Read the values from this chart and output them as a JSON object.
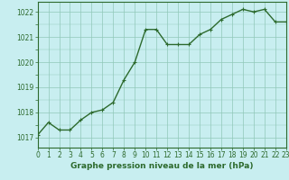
{
  "x": [
    0,
    1,
    2,
    3,
    4,
    5,
    6,
    7,
    8,
    9,
    10,
    11,
    12,
    13,
    14,
    15,
    16,
    17,
    18,
    19,
    20,
    21,
    22,
    23
  ],
  "y": [
    1017.1,
    1017.6,
    1017.3,
    1017.3,
    1017.7,
    1018.0,
    1018.1,
    1018.4,
    1019.3,
    1020.0,
    1021.3,
    1021.3,
    1020.7,
    1020.7,
    1020.7,
    1021.1,
    1021.3,
    1021.7,
    1021.9,
    1022.1,
    1022.0,
    1022.1,
    1021.6,
    1021.6
  ],
  "line_color": "#2d6a2d",
  "marker": "+",
  "background_color": "#c8eef0",
  "grid_color": "#90c8b8",
  "xlabel": "Graphe pression niveau de la mer (hPa)",
  "ylim": [
    1016.6,
    1022.4
  ],
  "xlim": [
    0,
    23
  ],
  "yticks": [
    1017,
    1018,
    1019,
    1020,
    1021,
    1022
  ],
  "xticks": [
    0,
    1,
    2,
    3,
    4,
    5,
    6,
    7,
    8,
    9,
    10,
    11,
    12,
    13,
    14,
    15,
    16,
    17,
    18,
    19,
    20,
    21,
    22,
    23
  ],
  "xlabel_fontsize": 6.5,
  "tick_fontsize": 5.5,
  "linewidth": 1.0,
  "markersize": 3,
  "markeredgewidth": 0.8
}
